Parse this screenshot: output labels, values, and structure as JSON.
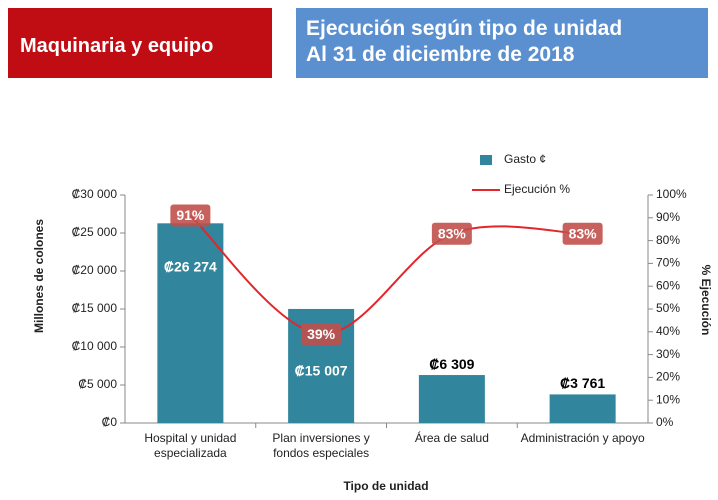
{
  "header": {
    "section": "Maquinaria y equipo",
    "title_lines": [
      "Ejecución según tipo de unidad",
      "Al 31 de diciembre de 2018"
    ]
  },
  "chart_data": {
    "type": "bar_line",
    "x_label": "Tipo de unidad",
    "y_label": "Millones de colones",
    "y2_label": "% Ejecución",
    "categories": [
      "Hospital y unidad especializada",
      "Plan inversiones y fondos especiales",
      "Área de salud",
      "Administración y apoyo"
    ],
    "series": [
      {
        "name": "Gasto ¢",
        "type": "bar",
        "color": "#31859c",
        "values": [
          26274,
          15007,
          6309,
          3761
        ],
        "value_labels": [
          "₡26 274",
          "₡15 007",
          "₡6 309",
          "₡3 761"
        ]
      },
      {
        "name": "Ejecución %",
        "type": "line",
        "axis": "y2",
        "color": "#e3262b",
        "values": [
          91,
          39,
          83,
          83
        ],
        "value_labels": [
          "91%",
          "39%",
          "83%",
          "83%"
        ]
      }
    ],
    "ylim": [
      0,
      30000
    ],
    "yticks": [
      {
        "value": 0,
        "label": "₡0"
      },
      {
        "value": 5000,
        "label": "₡5 000"
      },
      {
        "value": 10000,
        "label": "₡10 000"
      },
      {
        "value": 15000,
        "label": "₡15 000"
      },
      {
        "value": 20000,
        "label": "₡20 000"
      },
      {
        "value": 25000,
        "label": "₡25 000"
      },
      {
        "value": 30000,
        "label": "₡30 000"
      }
    ],
    "y2lim": [
      0,
      100
    ],
    "y2ticks": [
      {
        "value": 0,
        "label": "0%"
      },
      {
        "value": 10,
        "label": "10%"
      },
      {
        "value": 20,
        "label": "20%"
      },
      {
        "value": 30,
        "label": "30%"
      },
      {
        "value": 40,
        "label": "40%"
      },
      {
        "value": 50,
        "label": "50%"
      },
      {
        "value": 60,
        "label": "60%"
      },
      {
        "value": 70,
        "label": "70%"
      },
      {
        "value": 80,
        "label": "80%"
      },
      {
        "value": 90,
        "label": "90%"
      },
      {
        "value": 100,
        "label": "100%"
      }
    ],
    "grid": false,
    "legend": "top-right"
  }
}
